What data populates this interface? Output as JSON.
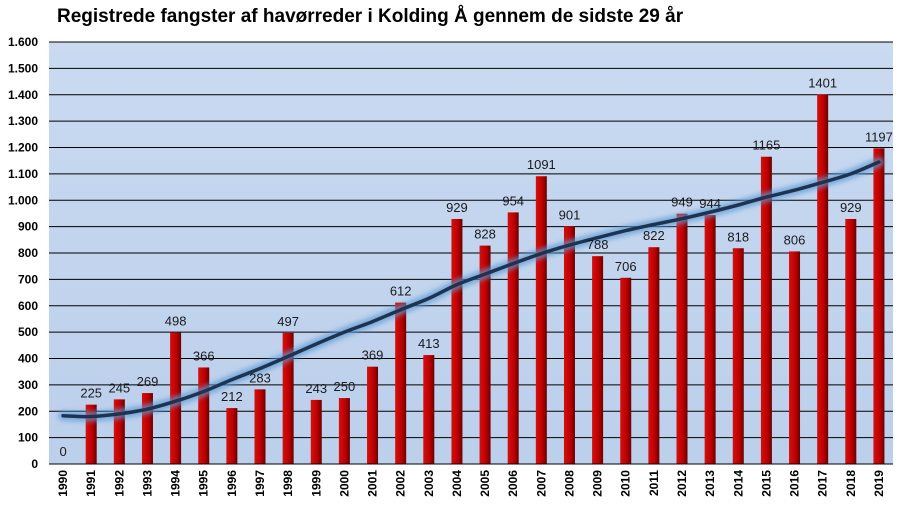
{
  "chart_data": {
    "type": "bar",
    "title": "Registrede fangster af havørreder i Kolding Å gennem de sidste 29 år",
    "xlabel": "",
    "ylabel": "",
    "ylim": [
      0,
      1600
    ],
    "yticks": [
      0,
      100,
      200,
      300,
      400,
      500,
      600,
      700,
      800,
      900,
      1000,
      1100,
      1200,
      1300,
      1400,
      1500,
      1600
    ],
    "ytick_labels": [
      "0",
      "100",
      "200",
      "300",
      "400",
      "500",
      "600",
      "700",
      "800",
      "900",
      "1.000",
      "1.100",
      "1.200",
      "1.300",
      "1.400",
      "1.500",
      "1.600"
    ],
    "categories": [
      "1990",
      "1991",
      "1992",
      "1993",
      "1994",
      "1995",
      "1996",
      "1997",
      "1998",
      "1999",
      "2000",
      "2001",
      "2002",
      "2003",
      "2004",
      "2005",
      "2006",
      "2007",
      "2008",
      "2009",
      "2010",
      "2011",
      "2012",
      "2013",
      "2014",
      "2015",
      "2016",
      "2017",
      "2018",
      "2019"
    ],
    "values": [
      0,
      225,
      245,
      269,
      498,
      366,
      212,
      283,
      497,
      243,
      250,
      369,
      612,
      413,
      929,
      828,
      954,
      1091,
      901,
      788,
      706,
      822,
      949,
      944,
      818,
      1165,
      806,
      1401,
      929,
      1197
    ],
    "trendline": {
      "type": "polynomial",
      "x": [
        "1990",
        "1991",
        "1992",
        "1993",
        "1994",
        "1995",
        "1996",
        "1997",
        "1998",
        "1999",
        "2000",
        "2001",
        "2002",
        "2003",
        "2004",
        "2005",
        "2006",
        "2007",
        "2008",
        "2009",
        "2010",
        "2011",
        "2012",
        "2013",
        "2014",
        "2015",
        "2016",
        "2017",
        "2018",
        "2019"
      ],
      "y": [
        183,
        180,
        190,
        208,
        238,
        275,
        320,
        362,
        408,
        455,
        500,
        540,
        585,
        628,
        680,
        720,
        760,
        798,
        830,
        858,
        885,
        908,
        930,
        955,
        982,
        1012,
        1038,
        1068,
        1100,
        1145
      ]
    },
    "grid": true,
    "legend": "none",
    "colors": {
      "bar": "#c00000",
      "bar_dark": "#6b0000",
      "plot_bg": "#c3d5ef",
      "trend": "#1e3350",
      "trend_glow": "#5b9bd5"
    }
  }
}
